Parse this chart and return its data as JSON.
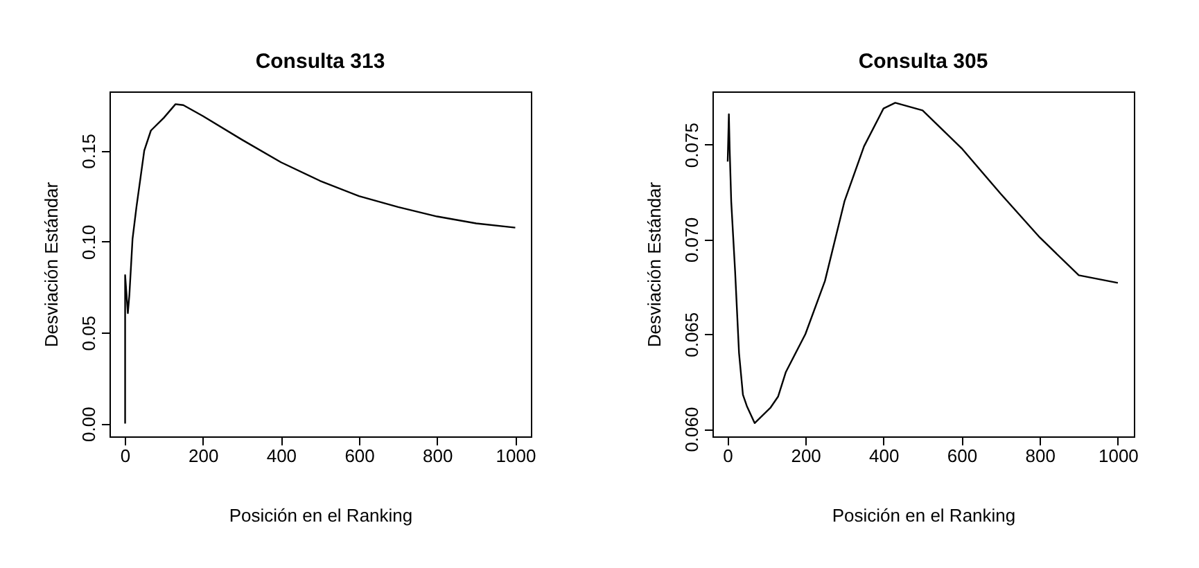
{
  "chart_data": [
    {
      "type": "line",
      "title": "Consulta 313",
      "xlabel": "Posición en el Ranking",
      "ylabel": "Desviación Estándar",
      "x": [
        1,
        1,
        8,
        12,
        20,
        30,
        50,
        67,
        100,
        130,
        150,
        200,
        300,
        400,
        500,
        600,
        700,
        800,
        900,
        1000
      ],
      "series": [
        {
          "color": "#000000",
          "values": [
            0.0,
            0.0816,
            0.0607,
            0.071,
            0.1015,
            0.119,
            0.15,
            0.161,
            0.168,
            0.1755,
            0.175,
            0.169,
            0.156,
            0.1436,
            0.1334,
            0.125,
            0.119,
            0.1138,
            0.11,
            0.1077
          ]
        }
      ],
      "xlim": [
        -39,
        1040
      ],
      "ylim": [
        -0.007,
        0.1825
      ],
      "xticks": [
        0,
        200,
        400,
        600,
        800,
        1000
      ],
      "yticks": [
        {
          "value": 0,
          "label": "0.00"
        },
        {
          "value": 0.05,
          "label": "0.05"
        },
        {
          "value": 0.1,
          "label": "0.10"
        },
        {
          "value": 0.15,
          "label": "0.15"
        }
      ],
      "grid": false
    },
    {
      "type": "line",
      "title": "Consulta 305",
      "xlabel": "Posición en el Ranking",
      "ylabel": "Desviación Estándar",
      "x": [
        1,
        4,
        6,
        10,
        20,
        30,
        40,
        50,
        70,
        90,
        110,
        130,
        150,
        200,
        250,
        300,
        350,
        400,
        430,
        500,
        600,
        700,
        800,
        900,
        1000
      ],
      "series": [
        {
          "color": "#000000",
          "values": [
            0.0741,
            0.0766,
            0.0748,
            0.072,
            0.0683,
            0.064,
            0.0618,
            0.0612,
            0.0603,
            0.0607,
            0.0611,
            0.0617,
            0.063,
            0.065,
            0.0678,
            0.072,
            0.0749,
            0.0769,
            0.0772,
            0.0768,
            0.0748,
            0.0724,
            0.0701,
            0.0681,
            0.0677
          ]
        }
      ],
      "xlim": [
        -38,
        1041
      ],
      "ylim": [
        0.0596,
        0.0778
      ],
      "xticks": [
        0,
        200,
        400,
        600,
        800,
        1000
      ],
      "yticks": [
        {
          "value": 0.06,
          "label": "0.060"
        },
        {
          "value": 0.065,
          "label": "0.065"
        },
        {
          "value": 0.07,
          "label": "0.070"
        },
        {
          "value": 0.075,
          "label": "0.075"
        }
      ],
      "grid": false
    }
  ]
}
